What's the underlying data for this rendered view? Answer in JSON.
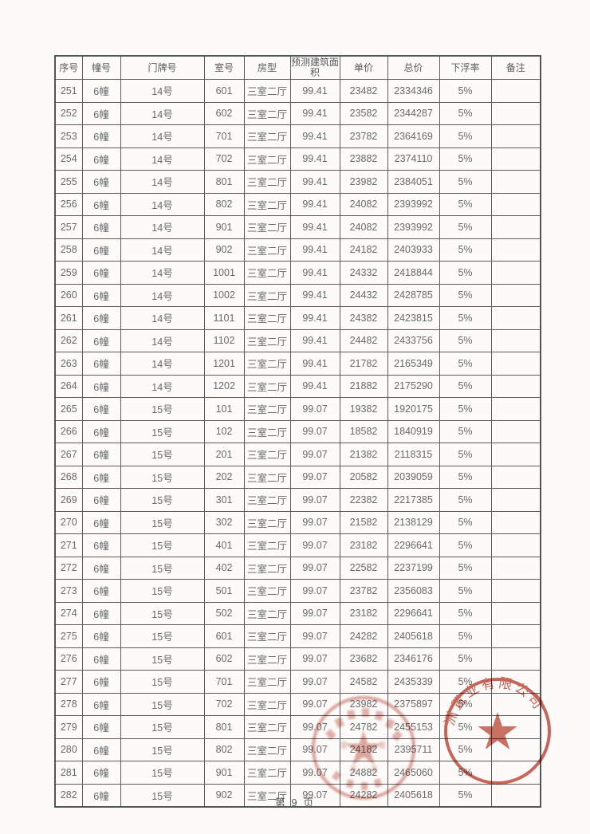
{
  "page": {
    "footer": "第 9 页"
  },
  "table": {
    "headers": [
      "序号",
      "幢号",
      "门牌号",
      "室号",
      "房型",
      "预测建筑面积",
      "单价",
      "总价",
      "下浮率",
      "备注"
    ],
    "field_names": [
      "no",
      "building",
      "door",
      "room",
      "type",
      "area",
      "unit_price",
      "total_price",
      "discount",
      "remark"
    ],
    "rows": [
      [
        "251",
        "6幢",
        "14号",
        "601",
        "三室二厅",
        "99.41",
        "23482",
        "2334346",
        "5%",
        ""
      ],
      [
        "252",
        "6幢",
        "14号",
        "602",
        "三室二厅",
        "99.41",
        "23582",
        "2344287",
        "5%",
        ""
      ],
      [
        "253",
        "6幢",
        "14号",
        "701",
        "三室二厅",
        "99.41",
        "23782",
        "2364169",
        "5%",
        ""
      ],
      [
        "254",
        "6幢",
        "14号",
        "702",
        "三室二厅",
        "99.41",
        "23882",
        "2374110",
        "5%",
        ""
      ],
      [
        "255",
        "6幢",
        "14号",
        "801",
        "三室二厅",
        "99.41",
        "23982",
        "2384051",
        "5%",
        ""
      ],
      [
        "256",
        "6幢",
        "14号",
        "802",
        "三室二厅",
        "99.41",
        "24082",
        "2393992",
        "5%",
        ""
      ],
      [
        "257",
        "6幢",
        "14号",
        "901",
        "三室二厅",
        "99.41",
        "24082",
        "2393992",
        "5%",
        ""
      ],
      [
        "258",
        "6幢",
        "14号",
        "902",
        "三室二厅",
        "99.41",
        "24182",
        "2403933",
        "5%",
        ""
      ],
      [
        "259",
        "6幢",
        "14号",
        "1001",
        "三室二厅",
        "99.41",
        "24332",
        "2418844",
        "5%",
        ""
      ],
      [
        "260",
        "6幢",
        "14号",
        "1002",
        "三室二厅",
        "99.41",
        "24432",
        "2428785",
        "5%",
        ""
      ],
      [
        "261",
        "6幢",
        "14号",
        "1101",
        "三室二厅",
        "99.41",
        "24382",
        "2423815",
        "5%",
        ""
      ],
      [
        "262",
        "6幢",
        "14号",
        "1102",
        "三室二厅",
        "99.41",
        "24482",
        "2433756",
        "5%",
        ""
      ],
      [
        "263",
        "6幢",
        "14号",
        "1201",
        "三室二厅",
        "99.41",
        "21782",
        "2165349",
        "5%",
        ""
      ],
      [
        "264",
        "6幢",
        "14号",
        "1202",
        "三室二厅",
        "99.41",
        "21882",
        "2175290",
        "5%",
        ""
      ],
      [
        "265",
        "6幢",
        "15号",
        "101",
        "三室二厅",
        "99.07",
        "19382",
        "1920175",
        "5%",
        ""
      ],
      [
        "266",
        "6幢",
        "15号",
        "102",
        "三室二厅",
        "99.07",
        "18582",
        "1840919",
        "5%",
        ""
      ],
      [
        "267",
        "6幢",
        "15号",
        "201",
        "三室二厅",
        "99.07",
        "21382",
        "2118315",
        "5%",
        ""
      ],
      [
        "268",
        "6幢",
        "15号",
        "202",
        "三室二厅",
        "99.07",
        "20582",
        "2039059",
        "5%",
        ""
      ],
      [
        "269",
        "6幢",
        "15号",
        "301",
        "三室二厅",
        "99.07",
        "22382",
        "2217385",
        "5%",
        ""
      ],
      [
        "270",
        "6幢",
        "15号",
        "302",
        "三室二厅",
        "99.07",
        "21582",
        "2138129",
        "5%",
        ""
      ],
      [
        "271",
        "6幢",
        "15号",
        "401",
        "三室二厅",
        "99.07",
        "23182",
        "2296641",
        "5%",
        ""
      ],
      [
        "272",
        "6幢",
        "15号",
        "402",
        "三室二厅",
        "99.07",
        "22582",
        "2237199",
        "5%",
        ""
      ],
      [
        "273",
        "6幢",
        "15号",
        "501",
        "三室二厅",
        "99.07",
        "23782",
        "2356083",
        "5%",
        ""
      ],
      [
        "274",
        "6幢",
        "15号",
        "502",
        "三室二厅",
        "99.07",
        "23182",
        "2296641",
        "5%",
        ""
      ],
      [
        "275",
        "6幢",
        "15号",
        "601",
        "三室二厅",
        "99.07",
        "24282",
        "2405618",
        "5%",
        ""
      ],
      [
        "276",
        "6幢",
        "15号",
        "602",
        "三室二厅",
        "99.07",
        "23682",
        "2346176",
        "5%",
        ""
      ],
      [
        "277",
        "6幢",
        "15号",
        "701",
        "三室二厅",
        "99.07",
        "24582",
        "2435339",
        "5%",
        ""
      ],
      [
        "278",
        "6幢",
        "15号",
        "702",
        "三室二厅",
        "99.07",
        "23982",
        "2375897",
        "5%",
        ""
      ],
      [
        "279",
        "6幢",
        "15号",
        "801",
        "三室二厅",
        "99.07",
        "24782",
        "2455153",
        "5%",
        ""
      ],
      [
        "280",
        "6幢",
        "15号",
        "802",
        "三室二厅",
        "99.07",
        "24182",
        "2395711",
        "5%",
        ""
      ],
      [
        "281",
        "6幢",
        "15号",
        "901",
        "三室二厅",
        "99.07",
        "24882",
        "2465060",
        "5%",
        ""
      ],
      [
        "282",
        "6幢",
        "15号",
        "902",
        "三室二厅",
        "99.07",
        "24282",
        "2405618",
        "5%",
        ""
      ]
    ]
  },
  "stamps": {
    "right": {
      "arc_text": "洲置业有限公司",
      "color": "#bc4536"
    },
    "left": {
      "arc_text": "",
      "color": "#bc4536"
    }
  },
  "colors": {
    "paper": "#fcfbfa",
    "table_border": "#5c5c5c",
    "text": "#686868",
    "seal_red": "#bc4536"
  }
}
